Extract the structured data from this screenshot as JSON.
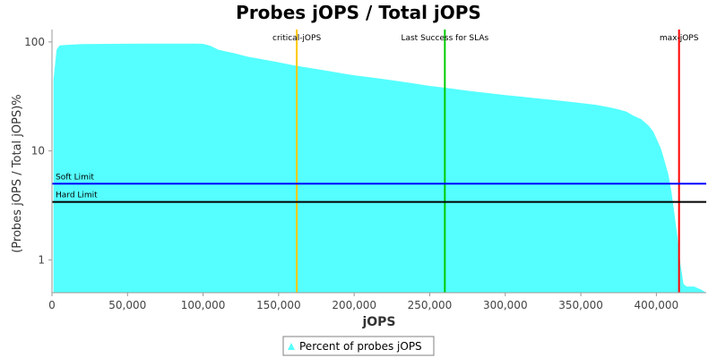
{
  "chart_data": {
    "type": "area",
    "title": "Probes jOPS / Total jOPS",
    "xlabel": "jOPS",
    "ylabel": "(Probes jOPS / Total jOPS)%",
    "yscale": "log",
    "xlim": [
      0,
      433000
    ],
    "ylim": [
      0.5,
      130
    ],
    "x_ticks": [
      0,
      50000,
      100000,
      150000,
      200000,
      250000,
      300000,
      350000,
      400000
    ],
    "x_tick_labels": [
      "0",
      "50,000",
      "100,000",
      "150,000",
      "200,000",
      "250,000",
      "300,000",
      "350,000",
      "400,000"
    ],
    "y_ticks": [
      1,
      10,
      100
    ],
    "y_tick_labels": [
      "1",
      "10",
      "100"
    ],
    "series": [
      {
        "name": "Percent of probes jOPS",
        "color": "#55FFFF",
        "x": [
          1000,
          3000,
          5000,
          10000,
          20000,
          40000,
          60000,
          80000,
          95000,
          100000,
          105000,
          110000,
          120000,
          130000,
          140000,
          150000,
          160000,
          170000,
          180000,
          190000,
          200000,
          210000,
          220000,
          230000,
          240000,
          250000,
          260000,
          270000,
          280000,
          290000,
          300000,
          310000,
          320000,
          330000,
          340000,
          350000,
          360000,
          370000,
          375000,
          380000,
          385000,
          390000,
          395000,
          398000,
          400000,
          403000,
          405000,
          408000,
          410000,
          412000,
          414000,
          416000,
          418000,
          420000,
          425000,
          430000,
          433000
        ],
        "y": [
          45,
          85,
          93,
          94,
          95.5,
          96,
          96.5,
          96.5,
          96.5,
          96,
          92,
          85,
          79,
          73,
          69,
          65,
          61,
          58,
          55,
          52,
          49.5,
          47.5,
          45.5,
          43.5,
          41.5,
          39.5,
          38,
          36.5,
          35,
          33.8,
          32.5,
          31.5,
          30.5,
          29.5,
          28.5,
          27.5,
          26.5,
          25,
          24,
          23,
          21,
          19.5,
          17,
          15,
          13,
          10.5,
          8.5,
          6,
          4.2,
          2.6,
          1.6,
          0.9,
          0.6,
          0.57,
          0.57,
          0.53,
          0.5
        ]
      }
    ],
    "vertical_markers": [
      {
        "label": "critical-jOPS",
        "x": 162000,
        "color": "#FFC800"
      },
      {
        "label": "Last Success for SLAs",
        "x": 260000,
        "color": "#00CC00"
      },
      {
        "label": "max-jOPS",
        "x": 415000,
        "color": "#FF0000"
      }
    ],
    "horizontal_markers": [
      {
        "label": "Soft Limit",
        "y": 5,
        "color": "#0000FF"
      },
      {
        "label": "Hard Limit",
        "y": 3.4,
        "color": "#000000"
      }
    ],
    "grid": false,
    "legend_position": "bottom-center",
    "legend": [
      {
        "label": "Percent of probes jOPS",
        "color": "#55FFFF"
      }
    ]
  }
}
